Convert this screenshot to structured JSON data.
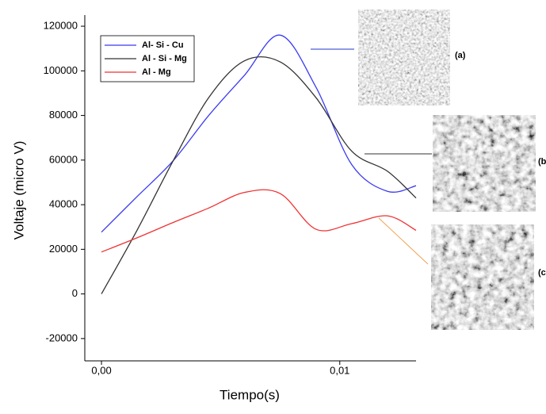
{
  "chart_data": {
    "type": "line",
    "xlabel": "Tiempo(s)",
    "ylabel": "Voltaje (micro V)",
    "x": [
      0,
      0.0015,
      0.003,
      0.0045,
      0.006,
      0.0075,
      0.009,
      0.0105,
      0.012,
      0.0132
    ],
    "series": [
      {
        "name": "Al- Si - Cu",
        "color": "#3b3bf0",
        "values": [
          27700,
          43700,
          59600,
          80000,
          98000,
          116000,
          92700,
          58000,
          46000,
          48500
        ]
      },
      {
        "name": "Al - Si - Mg",
        "color": "#333333",
        "values": [
          0,
          28700,
          59500,
          88000,
          104500,
          104000,
          88000,
          64000,
          55000,
          43000
        ]
      },
      {
        "name": "Al - Mg",
        "color": "#ee3333",
        "values": [
          18800,
          25200,
          32000,
          38500,
          45500,
          45000,
          29000,
          31500,
          35000,
          28500
        ]
      }
    ],
    "xlim": [
      -0.0007,
      0.0132
    ],
    "ylim": [
      -30000,
      125000
    ],
    "xticks": [
      {
        "value": 0,
        "label": "0,00"
      },
      {
        "value": 0.01,
        "label": "0,01"
      }
    ],
    "yticks": [
      -20000,
      0,
      20000,
      40000,
      60000,
      80000,
      100000,
      120000
    ],
    "legend": "upper left",
    "annotations": [
      "(a)",
      "(b",
      "(c"
    ]
  }
}
